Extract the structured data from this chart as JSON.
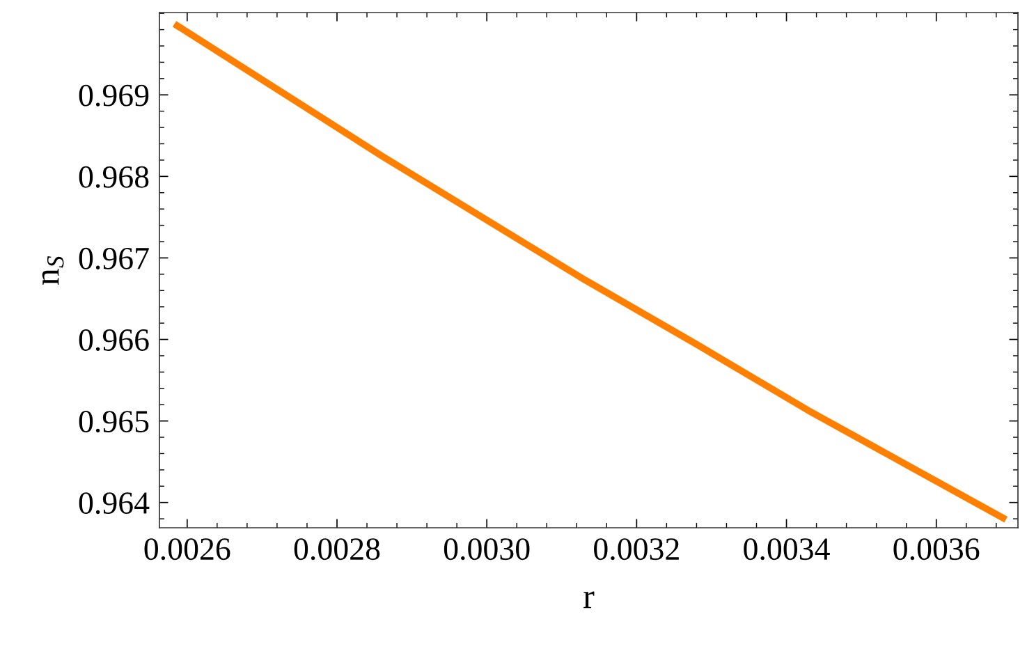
{
  "chart_data": {
    "type": "line",
    "xlabel": "r",
    "ylabel": "n$_{S}$",
    "x": [
      0.002583,
      0.00286,
      0.003131,
      0.00328,
      0.003429,
      0.003559,
      0.003693
    ],
    "series": [
      {
        "color": "#ff8000",
        "values": [
          0.96987,
          0.96825,
          0.96673,
          0.96594,
          0.96513,
          0.96447,
          0.96379
        ]
      }
    ],
    "xlim": [
      0.002563,
      0.003709
    ],
    "ylim": [
      0.96369,
      0.97001
    ],
    "xticks": [
      {
        "value": 0.0026,
        "label": "0.0026"
      },
      {
        "value": 0.0028,
        "label": "0.0028"
      },
      {
        "value": 0.003,
        "label": "0.0030"
      },
      {
        "value": 0.0032,
        "label": "0.0032"
      },
      {
        "value": 0.0034,
        "label": "0.0034"
      },
      {
        "value": 0.0036,
        "label": "0.0036"
      }
    ],
    "yticks": [
      0.964,
      0.965,
      0.966,
      0.967,
      0.968,
      0.969
    ],
    "grid": false,
    "legend": false,
    "marker": "none",
    "line_style": "solid"
  }
}
